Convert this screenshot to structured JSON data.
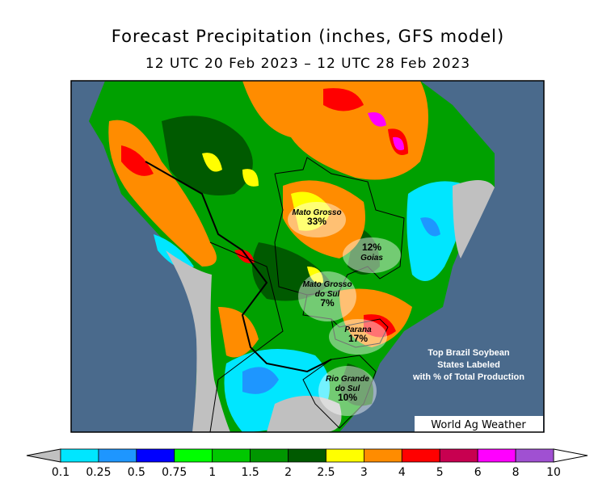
{
  "title": "Forecast Precipitation (inches, GFS model)",
  "subtitle": "12 UTC 20 Feb 2023 – 12 UTC 28 Feb 2023",
  "map": {
    "labels": [
      {
        "name": [
          "Mato Grosso"
        ],
        "share": "33%"
      },
      {
        "name": [
          "Goias"
        ],
        "share": "12%"
      },
      {
        "name": [
          "Mato Grosso",
          "do Sul"
        ],
        "share": "7%"
      },
      {
        "name": [
          "Parana"
        ],
        "share": "17%"
      },
      {
        "name": [
          "Rio Grande",
          "do Sul"
        ],
        "share": "10%"
      }
    ],
    "note": [
      "Top Brazil Soybean",
      "States Labeled",
      "with % of Total Production"
    ],
    "credit": "World Ag Weather"
  },
  "colorbar": {
    "ticks": [
      0.1,
      0.25,
      0.5,
      0.75,
      1,
      1.5,
      2,
      2.5,
      3,
      4,
      5,
      6,
      8,
      10
    ],
    "colors": [
      "#00e6ff",
      "#1e96ff",
      "#0000ff",
      "#00ff00",
      "#00c800",
      "#009600",
      "#005a00",
      "#ffff00",
      "#ff8c00",
      "#ff0000",
      "#c80050",
      "#ff00ff",
      "#a050d2"
    ],
    "under_color": "#c0c0c0",
    "over_color": "#ffffff"
  }
}
